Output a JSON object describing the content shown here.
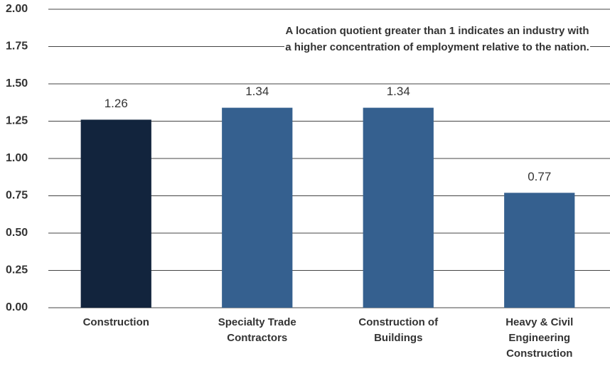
{
  "chart_data": {
    "type": "bar",
    "annotation": "A location quotient greater than 1 indicates an industry with a higher concentration of employment relative to the nation.",
    "categories": [
      "Construction",
      "Specialty Trade Contractors",
      "Construction of Buildings",
      "Heavy & Civil Engineering Construction"
    ],
    "values": [
      1.26,
      1.34,
      1.34,
      0.77
    ],
    "colors": [
      "#12243d",
      "#35608f",
      "#35608f",
      "#35608f"
    ],
    "ylim": [
      0,
      2
    ],
    "yticks": [
      {
        "value": 0,
        "label": "0.00"
      },
      {
        "value": 0.25,
        "label": "0.25"
      },
      {
        "value": 0.5,
        "label": "0.50"
      },
      {
        "value": 0.75,
        "label": "0.75"
      },
      {
        "value": 1,
        "label": "1.00"
      },
      {
        "value": 1.25,
        "label": "1.25"
      },
      {
        "value": 1.5,
        "label": "1.50"
      },
      {
        "value": 1.75,
        "label": "1.75"
      },
      {
        "value": 2,
        "label": "2.00"
      }
    ],
    "grid": true
  }
}
